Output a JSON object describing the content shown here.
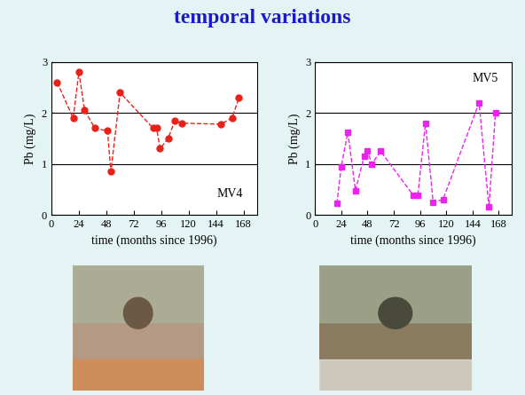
{
  "title": "temporal variations",
  "chart_data": [
    {
      "type": "line",
      "annotation": "MV4",
      "x_label": "time (months since 1996)",
      "y_label": "Pb (mg/L)",
      "x": [
        5,
        19,
        24,
        29,
        38,
        49,
        52,
        60,
        89,
        92,
        95,
        102,
        108,
        114,
        148,
        158,
        164
      ],
      "values": [
        2.6,
        1.9,
        2.8,
        2.05,
        1.7,
        1.65,
        0.85,
        2.4,
        1.7,
        1.7,
        1.3,
        1.5,
        1.85,
        1.8,
        1.78,
        1.9,
        2.3
      ],
      "color": "#e8221a",
      "marker": "circle",
      "line_style": "dashed",
      "xlim": [
        0,
        180
      ],
      "xticks": [
        0,
        24,
        48,
        72,
        96,
        120,
        144,
        168
      ],
      "ylim": [
        0,
        3
      ],
      "yticks": [
        0,
        1,
        2,
        3
      ],
      "grid": "y"
    },
    {
      "type": "line",
      "annotation": "MV5",
      "x_label": "time (months since 1996)",
      "y_label": "Pb (mg/L)",
      "x": [
        20,
        24,
        30,
        37,
        45,
        48,
        52,
        60,
        90,
        94,
        101,
        108,
        117,
        150,
        159,
        165
      ],
      "values": [
        0.22,
        0.95,
        1.62,
        0.48,
        1.15,
        1.25,
        1.0,
        1.25,
        0.38,
        0.38,
        1.8,
        0.25,
        0.3,
        2.2,
        0.15,
        2.0
      ],
      "color": "#ee22ee",
      "marker": "square",
      "line_style": "dashed",
      "xlim": [
        0,
        180
      ],
      "xticks": [
        0,
        24,
        48,
        72,
        96,
        120,
        144,
        168
      ],
      "ylim": [
        0,
        3
      ],
      "yticks": [
        0,
        1,
        2,
        3
      ],
      "grid": "y"
    }
  ]
}
